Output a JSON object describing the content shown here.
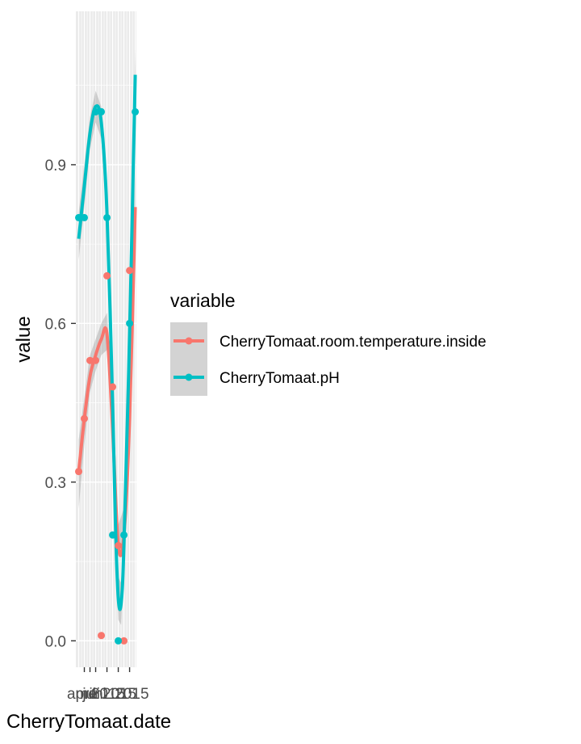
{
  "chart_data": {
    "type": "line",
    "xlabel": "CherryTomaat.date",
    "ylabel": "value",
    "x_tick_labels": [
      "april",
      "mei",
      "juni",
      "2015",
      "2015",
      "2015"
    ],
    "y_ticks": [
      0.0,
      0.3,
      0.6,
      0.9
    ],
    "y_tick_labels": [
      "0.0",
      "0.3",
      "0.6",
      "0.9"
    ],
    "ylim": [
      -0.05,
      1.19
    ],
    "grid": true,
    "legend_title": "variable",
    "legend_position": "right",
    "smoothed": true,
    "series": [
      {
        "name": "CherryTomaat.room.temperature.inside",
        "color": "#F8766D",
        "points": [
          [
            1,
            0.32
          ],
          [
            2,
            0.42
          ],
          [
            3,
            0.53
          ],
          [
            4,
            0.53
          ],
          [
            5,
            0.01
          ],
          [
            6,
            0.69
          ],
          [
            7,
            0.48
          ],
          [
            8,
            0.18
          ],
          [
            9,
            0.0
          ],
          [
            10,
            0.7
          ]
        ],
        "smooth": [
          [
            1,
            0.32
          ],
          [
            2,
            0.42
          ],
          [
            3,
            0.5
          ],
          [
            4,
            0.54
          ],
          [
            5,
            0.57
          ],
          [
            6,
            0.58
          ],
          [
            7,
            0.4
          ],
          [
            8,
            0.18
          ],
          [
            9,
            0.2
          ],
          [
            10,
            0.42
          ],
          [
            11,
            0.82
          ]
        ],
        "band": [
          [
            1,
            0.25,
            0.38
          ],
          [
            2,
            0.37,
            0.46
          ],
          [
            3,
            0.47,
            0.54
          ],
          [
            4,
            0.51,
            0.57
          ],
          [
            5,
            0.54,
            0.6
          ],
          [
            6,
            0.55,
            0.62
          ],
          [
            7,
            0.37,
            0.44
          ],
          [
            8,
            0.16,
            0.22
          ],
          [
            9,
            0.16,
            0.25
          ],
          [
            10,
            0.36,
            0.48
          ],
          [
            11,
            0.74,
            0.9
          ]
        ]
      },
      {
        "name": "CherryTomaat.pH",
        "color": "#00BFC4",
        "points": [
          [
            1,
            0.8
          ],
          [
            2,
            0.8
          ],
          [
            4,
            1.0
          ],
          [
            5,
            1.0
          ],
          [
            6,
            0.8
          ],
          [
            7,
            0.2
          ],
          [
            8,
            0.0
          ],
          [
            9,
            0.2
          ],
          [
            10,
            0.6
          ],
          [
            11,
            1.0
          ]
        ],
        "smooth": [
          [
            1,
            0.76
          ],
          [
            2,
            0.86
          ],
          [
            3,
            0.96
          ],
          [
            4,
            1.01
          ],
          [
            5,
            0.98
          ],
          [
            6,
            0.81
          ],
          [
            7,
            0.45
          ],
          [
            7.5,
            0.22
          ],
          [
            8,
            0.08
          ],
          [
            8.5,
            0.07
          ],
          [
            9,
            0.18
          ],
          [
            10,
            0.58
          ],
          [
            11,
            1.07
          ]
        ],
        "band": [
          [
            1,
            0.72,
            0.81
          ],
          [
            2,
            0.82,
            0.9
          ],
          [
            3,
            0.93,
            0.99
          ],
          [
            4,
            0.98,
            1.04
          ],
          [
            5,
            0.95,
            1.01
          ],
          [
            6,
            0.78,
            0.84
          ],
          [
            7,
            0.42,
            0.48
          ],
          [
            7.5,
            0.19,
            0.25
          ],
          [
            8,
            0.04,
            0.12
          ],
          [
            8.5,
            0.03,
            0.11
          ],
          [
            9,
            0.15,
            0.22
          ],
          [
            10,
            0.54,
            0.62
          ],
          [
            11,
            1.02,
            1.12
          ]
        ]
      }
    ]
  }
}
